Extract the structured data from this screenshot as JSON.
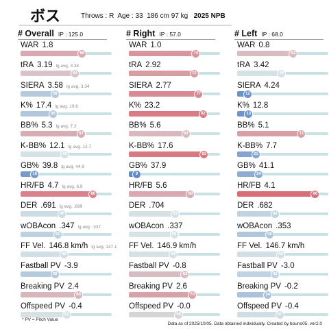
{
  "header": {
    "name": "ボス",
    "throws": "Throws : R",
    "age": "Age : 33",
    "height_weight": "186 cm 97 kg",
    "season": "2025 NPB"
  },
  "columns": [
    {
      "title": "# Overall",
      "ip": "IP : 125.0",
      "rows": [
        {
          "label": "WAR",
          "value": "1.8",
          "avg": "",
          "pct": 68
        },
        {
          "label": "tRA",
          "value": "3.19",
          "avg": "lg avg. 3.34",
          "pct": 60
        },
        {
          "label": "SIERA",
          "value": "3.58",
          "avg": "lg avg. 3.34",
          "pct": 38
        },
        {
          "label": "K%",
          "value": "17.4",
          "avg": "lg avg. 19.6",
          "pct": 36
        },
        {
          "label": "BB%",
          "value": "5.3",
          "avg": "lg avg. 7.2",
          "pct": 67
        },
        {
          "label": "K-BB%",
          "value": "12.1",
          "avg": "lg avg. 12.7",
          "pct": 49
        },
        {
          "label": "GB%",
          "value": "39.8",
          "avg": "lg avg. 44.9",
          "pct": 16
        },
        {
          "label": "HR/FB",
          "value": "4.7",
          "avg": "lg avg. 6.9",
          "pct": 80
        },
        {
          "label": "DER",
          "value": ".691",
          "avg": "lg avg. .699",
          "pct": 46
        },
        {
          "label": "wOBAcon",
          "value": ".347",
          "avg": "lg avg. .337",
          "pct": 41
        },
        {
          "label": "FF Vel.",
          "value": "146.8 km/h",
          "avg": "lg avg. 147.1",
          "pct": 48
        },
        {
          "label": "Fastball PV",
          "value": "-3.9",
          "avg": "",
          "pct": 38
        },
        {
          "label": "Breaking PV",
          "value": "2.4",
          "avg": "",
          "pct": 64
        },
        {
          "label": "Offspeed PV",
          "value": "-0.4",
          "avg": "",
          "pct": 51
        }
      ]
    },
    {
      "title": "# Right",
      "ip": "IP : 57.0",
      "rows": [
        {
          "label": "WAR",
          "value": "1.0",
          "avg": "",
          "pct": 74
        },
        {
          "label": "tRA",
          "value": "2.92",
          "avg": "",
          "pct": 72
        },
        {
          "label": "SIERA",
          "value": "2.77",
          "avg": "",
          "pct": 77
        },
        {
          "label": "K%",
          "value": "23.2",
          "avg": "",
          "pct": 82
        },
        {
          "label": "BB%",
          "value": "5.6",
          "avg": "",
          "pct": 63
        },
        {
          "label": "K-BB%",
          "value": "17.6",
          "avg": "",
          "pct": 83
        },
        {
          "label": "GB%",
          "value": "37.9",
          "avg": "",
          "pct": 9
        },
        {
          "label": "HR/FB",
          "value": "5.6",
          "avg": "",
          "pct": 68
        },
        {
          "label": "DER",
          "value": ".704",
          "avg": "",
          "pct": 51
        },
        {
          "label": "wOBAcon",
          "value": ".337",
          "avg": "",
          "pct": 50
        },
        {
          "label": "FF Vel.",
          "value": "146.9 km/h",
          "avg": "",
          "pct": 49
        },
        {
          "label": "Fastball PV",
          "value": "-0.8",
          "avg": "",
          "pct": 62
        },
        {
          "label": "Breaking PV",
          "value": "2.6",
          "avg": "",
          "pct": 70
        },
        {
          "label": "Offspeed PV",
          "value": "-0.0",
          "avg": "",
          "pct": 55
        }
      ]
    },
    {
      "title": "# Left",
      "ip": "IP : 68.0",
      "rows": [
        {
          "label": "WAR",
          "value": "0.8",
          "avg": "",
          "pct": 62
        },
        {
          "label": "tRA",
          "value": "3.42",
          "avg": "",
          "pct": 49
        },
        {
          "label": "SIERA",
          "value": "4.24",
          "avg": "",
          "pct": 12
        },
        {
          "label": "K%",
          "value": "12.8",
          "avg": "",
          "pct": 13
        },
        {
          "label": "BB%",
          "value": "5.1",
          "avg": "",
          "pct": 71
        },
        {
          "label": "K-BB%",
          "value": "7.7",
          "avg": "",
          "pct": 21
        },
        {
          "label": "GB%",
          "value": "41.1",
          "avg": "",
          "pct": 24
        },
        {
          "label": "HR/FB",
          "value": "4.1",
          "avg": "",
          "pct": 86
        },
        {
          "label": "DER",
          "value": ".682",
          "avg": "",
          "pct": 42
        },
        {
          "label": "wOBAcon",
          "value": ".353",
          "avg": "",
          "pct": 36
        },
        {
          "label": "FF Vel.",
          "value": "146.7 km/h",
          "avg": "",
          "pct": 48
        },
        {
          "label": "Fastball PV",
          "value": "-3.0",
          "avg": "",
          "pct": 42
        },
        {
          "label": "Breaking PV",
          "value": "-0.2",
          "avg": "",
          "pct": 34
        },
        {
          "label": "Offspeed PV",
          "value": "-0.4",
          "avg": "",
          "pct": 47
        }
      ]
    }
  ],
  "footnote": "* PV = Pitch Value",
  "credit": "Data as of 2025/10/05. Data obtained individually. Created by bouno05.  ver2.0",
  "colors": {
    "high": "#d9404d",
    "mid": "#c9e0e4",
    "low": "#4a78bd",
    "track": "#c9e0e4"
  }
}
